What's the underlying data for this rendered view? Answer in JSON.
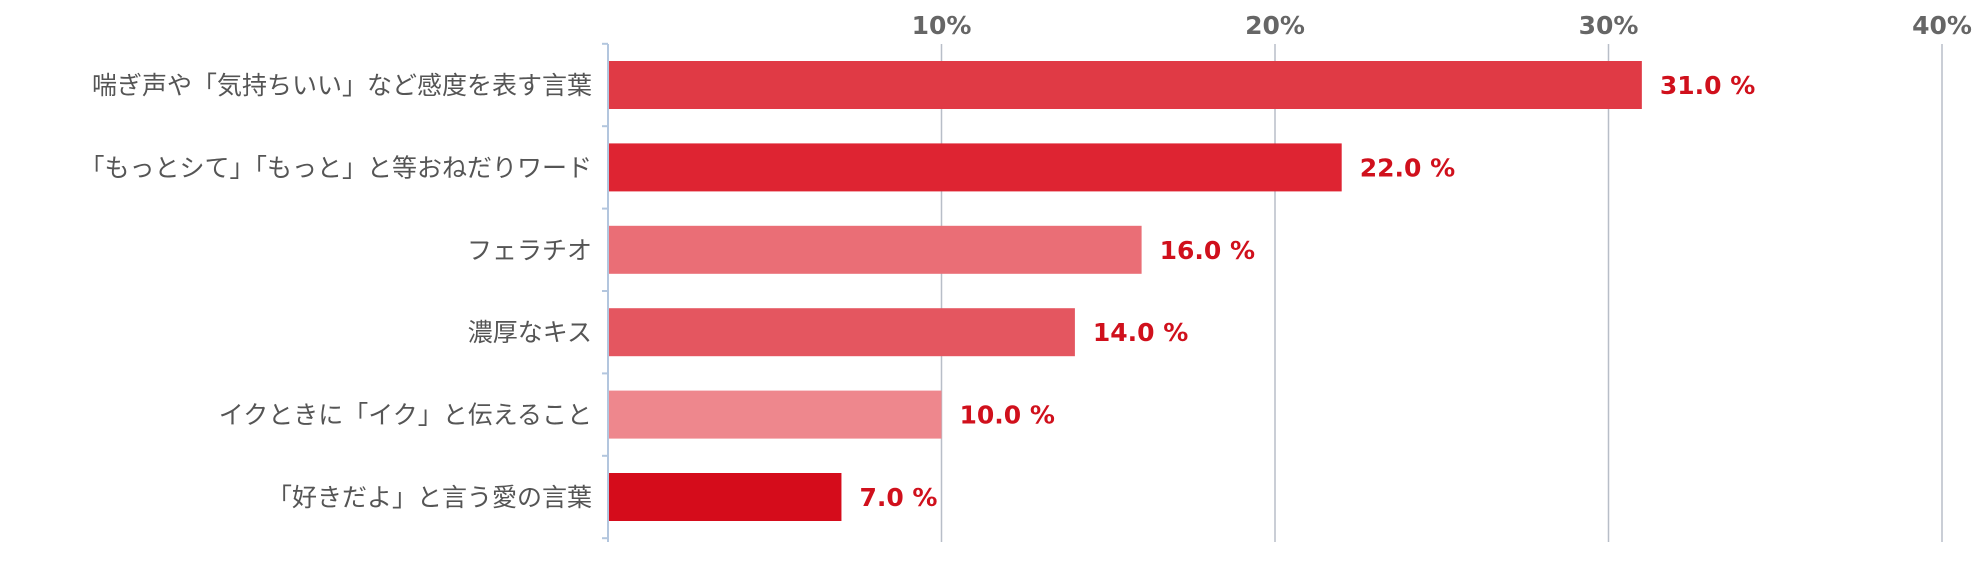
{
  "chart_data": {
    "type": "bar",
    "orientation": "horizontal",
    "categories": [
      "喘ぎ声や「気持ちいい」など感度を表す言葉",
      "「もっとシて」「もっと」と等おねだりワード",
      "フェラチオ",
      "濃厚なキス",
      "イクときに「イク」と伝えること",
      "「好きだよ」と言う愛の言葉"
    ],
    "values": [
      31.0,
      22.0,
      16.0,
      14.0,
      10.0,
      7.0
    ],
    "value_labels": [
      "31.0 %",
      "22.0 %",
      "16.0 %",
      "14.0 %",
      "10.0 %",
      "7.0 %"
    ],
    "xlim": [
      0,
      40
    ],
    "xticks": [
      10,
      20,
      30,
      40
    ],
    "xtick_labels": [
      "10%",
      "20%",
      "30%",
      "40%"
    ],
    "tick_position": "top",
    "grid": true,
    "bar_colors": [
      "#e03a45",
      "#de2432",
      "#ea6e76",
      "#e45660",
      "#ee878d",
      "#d50c1b"
    ],
    "value_label_color": "#d0101c",
    "gridline_color": "#b8bec8",
    "axis_color": "#b3c6de"
  }
}
